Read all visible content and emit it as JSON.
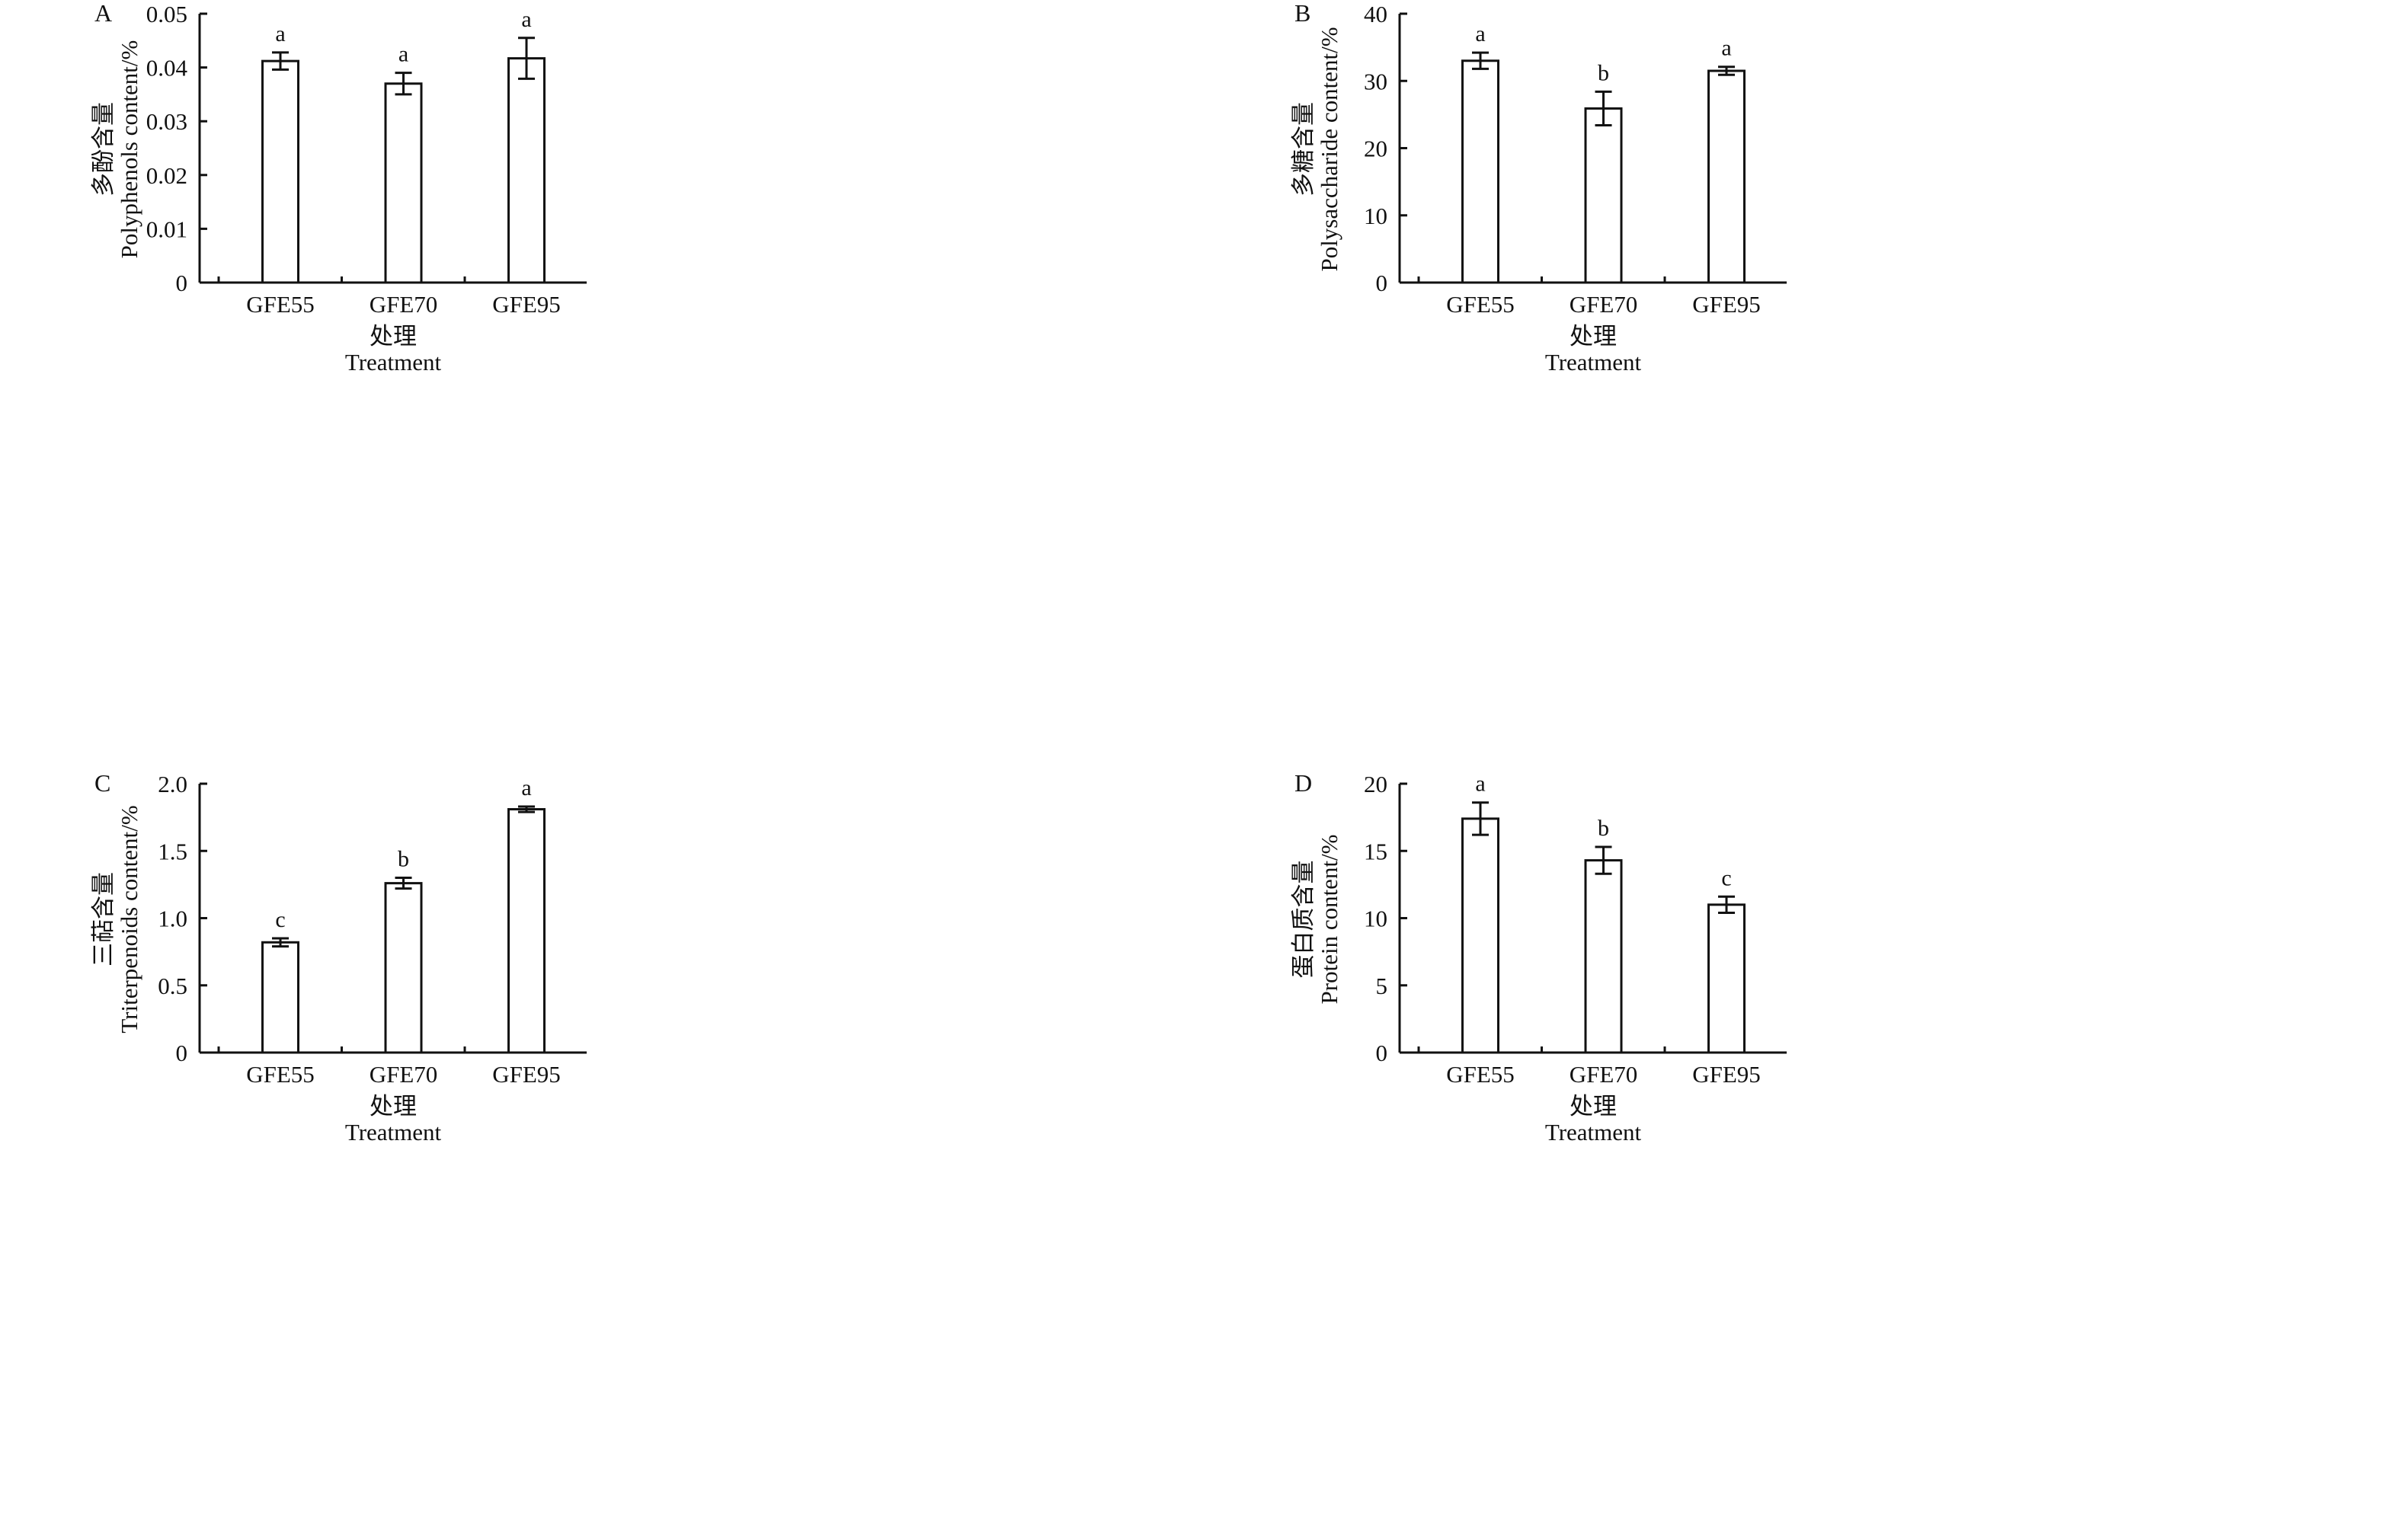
{
  "chart_data": [
    {
      "type": "bar",
      "panel_label": "A",
      "categories": [
        "GFE55",
        "GFE70",
        "GFE95"
      ],
      "values": [
        0.0412,
        0.037,
        0.0417
      ],
      "errors": [
        0.0016,
        0.002,
        0.0038
      ],
      "significance": [
        "a",
        "a",
        "a"
      ],
      "ylim": [
        0,
        0.05
      ],
      "yticks": [
        0,
        0.01,
        0.02,
        0.03,
        0.04,
        0.05
      ],
      "ytick_labels": [
        "0",
        "0.01",
        "0.02",
        "0.03",
        "0.04",
        "0.05"
      ],
      "ylabel_cn": "多酚含量",
      "ylabel_en": "Polyphenols content/%",
      "xlabel_cn": "处理",
      "xlabel_en": "Treatment"
    },
    {
      "type": "bar",
      "panel_label": "B",
      "categories": [
        "GFE55",
        "GFE70",
        "GFE95"
      ],
      "values": [
        33.0,
        25.9,
        31.5
      ],
      "errors": [
        1.2,
        2.5,
        0.6
      ],
      "significance": [
        "a",
        "b",
        "a"
      ],
      "ylim": [
        0,
        40
      ],
      "yticks": [
        0,
        10,
        20,
        30,
        40
      ],
      "ytick_labels": [
        "0",
        "10",
        "20",
        "30",
        "40"
      ],
      "ylabel_cn": "多糖含量",
      "ylabel_en": "Polysaccharide content/%",
      "xlabel_cn": "处理",
      "xlabel_en": "Treatment"
    },
    {
      "type": "bar",
      "panel_label": "C",
      "categories": [
        "GFE55",
        "GFE70",
        "GFE95"
      ],
      "values": [
        0.82,
        1.26,
        1.81
      ],
      "errors": [
        0.03,
        0.04,
        0.02
      ],
      "significance": [
        "c",
        "b",
        "a"
      ],
      "ylim": [
        0,
        2.0
      ],
      "yticks": [
        0,
        0.5,
        1.0,
        1.5,
        2.0
      ],
      "ytick_labels": [
        "0",
        "0.5",
        "1.0",
        "1.5",
        "2.0"
      ],
      "ylabel_cn": "三萜含量",
      "ylabel_en": "Triterpenoids content/%",
      "xlabel_cn": "处理",
      "xlabel_en": "Treatment"
    },
    {
      "type": "bar",
      "panel_label": "D",
      "categories": [
        "GFE55",
        "GFE70",
        "GFE95"
      ],
      "values": [
        17.4,
        14.3,
        11.0
      ],
      "errors": [
        1.2,
        1.0,
        0.6
      ],
      "significance": [
        "a",
        "b",
        "c"
      ],
      "ylim": [
        0,
        20
      ],
      "yticks": [
        0,
        5,
        10,
        15,
        20
      ],
      "ytick_labels": [
        "0",
        "5",
        "10",
        "15",
        "20"
      ],
      "ylabel_cn": "蛋白质含量",
      "ylabel_en": "Protein content/%",
      "xlabel_cn": "处理",
      "xlabel_en": "Treatment"
    }
  ],
  "colors": {
    "bar_fill": "#ffffff",
    "stroke": "#111111"
  }
}
